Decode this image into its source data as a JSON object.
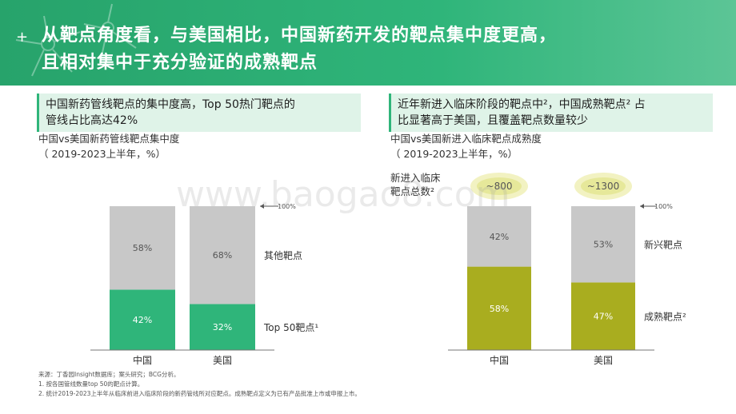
{
  "header": {
    "line1": "从靶点角度看，与美国相比，中国新药开发的靶点集中度更高，",
    "line2": "且相对集中于充分验证的成熟靶点"
  },
  "left": {
    "title_line1": "中国新药管线靶点的集中度高，Top 50热门靶点的",
    "title_line2": "管线占比高达42%",
    "sub1": "中国vs美国新药管线靶点集中度",
    "sub2": "（ 2019-2023上半年，%）"
  },
  "right": {
    "title_line1": "近年新进入临床阶段的靶点中²，中国成熟靶点² 占",
    "title_line2": "比显著高于美国，且覆盖靶点数量较少",
    "sub1": "中国vs美国新进入临床靶点成熟度",
    "sub2": "（ 2019-2023上半年，%）",
    "count_label_line1": "新进入临床",
    "count_label_line2": "靶点总数²"
  },
  "watermark": "www.baogao8.com",
  "chart_data": [
    {
      "type": "bar",
      "stacked": true,
      "categories": [
        "中国",
        "美国"
      ],
      "series": [
        {
          "name": "Top 50靶点¹",
          "values": [
            42,
            32
          ],
          "labels": [
            "42%",
            "32%"
          ],
          "color": "#2fb57a"
        },
        {
          "name": "其他靶点",
          "values": [
            58,
            68
          ],
          "labels": [
            "58%",
            "68%"
          ],
          "color": "#c8c8c8"
        }
      ],
      "total_label": "100%",
      "ylim": [
        0,
        100
      ]
    },
    {
      "type": "bar",
      "stacked": true,
      "categories": [
        "中国",
        "美国"
      ],
      "series": [
        {
          "name": "成熟靶点²",
          "values": [
            58,
            47
          ],
          "labels": [
            "58%",
            "47%"
          ],
          "color": "#a9ad1f"
        },
        {
          "name": "新兴靶点",
          "values": [
            42,
            53
          ],
          "labels": [
            "42%",
            "53%"
          ],
          "color": "#c8c8c8"
        }
      ],
      "totals": [
        "~800",
        "~1300"
      ],
      "total_label": "100%",
      "ylim": [
        0,
        100
      ]
    }
  ],
  "source": {
    "line1": "来源：丁香园Insight数据库；案头研究；BCG分析。",
    "line2": "1. 按各国管线数量top  50的靶点计算。",
    "line3": "2. 统计2019-2023上半年从临床前进入临床阶段的新药管线所对应靶点。成熟靶点定义为已有产品批准上市或申报上市。"
  }
}
